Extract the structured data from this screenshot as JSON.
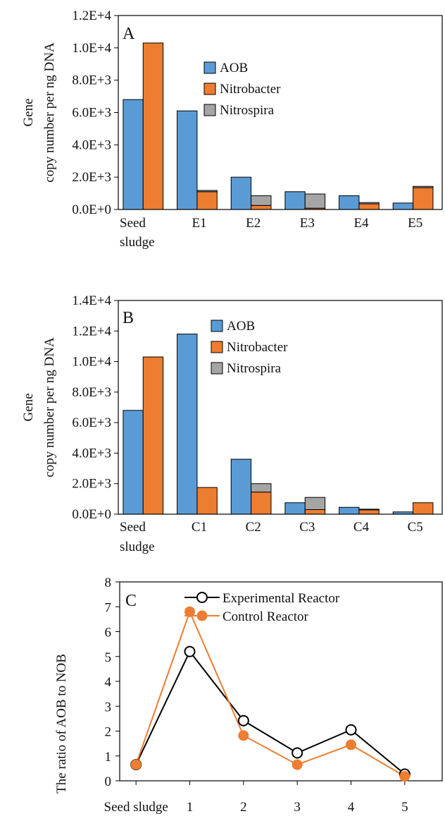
{
  "chart_data": [
    {
      "type": "bar",
      "panel_label": "A",
      "ylabel_lines": [
        "Gene",
        "copy number per ng DNA"
      ],
      "ylim": [
        0,
        12000
      ],
      "ytick_labels": [
        "0.0E+0",
        "2.0E+3",
        "4.0E+3",
        "6.0E+3",
        "8.0E+3",
        "1.0E+4",
        "1.2E+4"
      ],
      "categories": [
        [
          "Seed",
          "sludge"
        ],
        [
          "E1"
        ],
        [
          "E2"
        ],
        [
          "E3"
        ],
        [
          "E4"
        ],
        [
          "E5"
        ]
      ],
      "legend_position": "upper-center",
      "series": [
        {
          "name": "AOB",
          "color": "#5B9BD5",
          "values": [
            6800,
            6100,
            2000,
            1100,
            850,
            400
          ]
        },
        {
          "name": "Nitrobacter",
          "color": "#ED7D31",
          "values": [
            10300,
            1100,
            250,
            80,
            350,
            1350
          ]
        },
        {
          "name": "Nitrospira",
          "color": "#A5A5A5",
          "values": [
            0,
            80,
            600,
            880,
            80,
            80
          ]
        }
      ]
    },
    {
      "type": "bar",
      "panel_label": "B",
      "ylabel_lines": [
        "Gene",
        "copy number per ng DNA"
      ],
      "ylim": [
        0,
        14000
      ],
      "ytick_labels": [
        "0.0E+0",
        "2.0E+3",
        "4.0E+3",
        "6.0E+3",
        "8.0E+3",
        "1.0E+4",
        "1.2E+4",
        "1.4E+4"
      ],
      "categories": [
        [
          "Seed",
          "sludge"
        ],
        [
          "C1"
        ],
        [
          "C2"
        ],
        [
          "C3"
        ],
        [
          "C4"
        ],
        [
          "C5"
        ]
      ],
      "legend_position": "upper-center",
      "series": [
        {
          "name": "AOB",
          "color": "#5B9BD5",
          "values": [
            6800,
            11800,
            3600,
            750,
            450,
            150
          ]
        },
        {
          "name": "Nitrobacter",
          "color": "#ED7D31",
          "values": [
            10300,
            1750,
            1450,
            300,
            280,
            750
          ]
        },
        {
          "name": "Nitrospira",
          "color": "#A5A5A5",
          "values": [
            0,
            0,
            550,
            800,
            50,
            0
          ]
        }
      ]
    },
    {
      "type": "line",
      "panel_label": "C",
      "ylabel": "The ratio of AOB to NOB",
      "ylim": [
        0,
        8
      ],
      "ytick_labels": [
        "0",
        "1",
        "2",
        "3",
        "4",
        "5",
        "6",
        "7",
        "8"
      ],
      "categories": [
        "Seed sludge",
        "1",
        "2",
        "3",
        "4",
        "5"
      ],
      "legend_position": "top-center",
      "series": [
        {
          "name": "Experimental  Reactor",
          "color": "#000000",
          "marker": "open-circle",
          "values": [
            0.65,
            5.2,
            2.42,
            1.12,
            2.05,
            0.27
          ]
        },
        {
          "name": "Control  Reactor",
          "color": "#ED7D31",
          "marker": "filled-circle",
          "values": [
            0.65,
            6.8,
            1.82,
            0.65,
            1.45,
            0.18
          ]
        }
      ]
    }
  ]
}
